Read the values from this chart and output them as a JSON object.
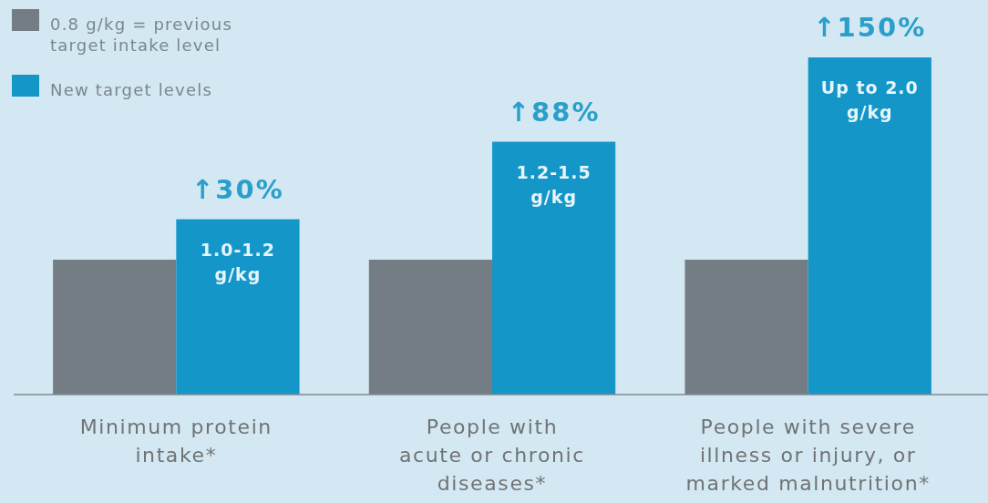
{
  "chart_data": {
    "type": "bar",
    "categories": [
      "Minimum protein\nintake*",
      "People with\nacute or chronic\ndiseases*",
      "People with severe\nillness or injury, or\nmarked malnutrition*"
    ],
    "series": [
      {
        "name": "0.8 g/kg = previous\ntarget intake level",
        "color": "#737d83",
        "values": [
          0.8,
          0.8,
          0.8
        ]
      },
      {
        "name": "New target levels",
        "color": "#1497c8",
        "values": [
          1.04,
          1.5,
          2.0
        ],
        "value_labels": [
          "1.0-1.2\ng/kg",
          "1.2-1.5\ng/kg",
          "Up to 2.0\ng/kg"
        ]
      }
    ],
    "annotations": [
      {
        "text": "↑30%",
        "x": "Minimum protein\nintake*",
        "y": 1.04
      },
      {
        "text": "↑88%",
        "x": "People with\nacute or chronic\ndiseases*",
        "y": 1.5
      },
      {
        "text": "↑150%",
        "x": "People with severe\nillness or injury, or\nmarked malnutrition*",
        "y": 2.0
      }
    ],
    "legend": "top left"
  }
}
